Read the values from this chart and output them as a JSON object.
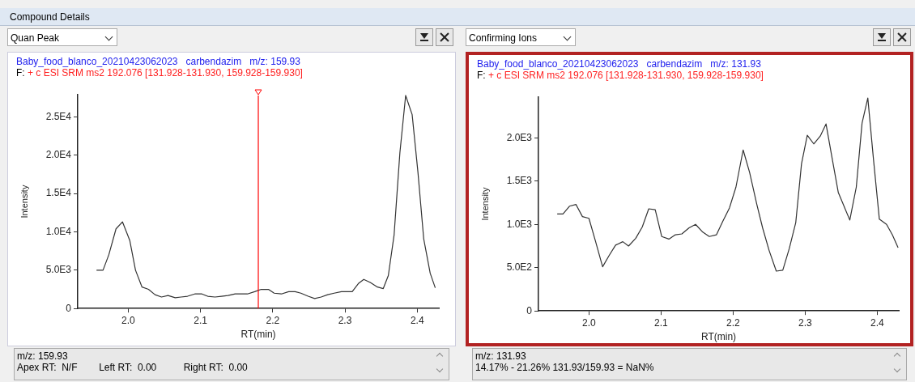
{
  "chart_data": [
    {
      "type": "line",
      "title": "Baby_food_blanco_20210423062023   carbendazim   m/z: 159.93",
      "subtitle": "F: + c ESI SRM ms2 192.076 [131.928-131.930, 159.928-159.930]",
      "xlabel": "RT(min)",
      "ylabel": "Intensity",
      "x": [
        1.956,
        1.965,
        1.973,
        1.983,
        1.992,
        2.002,
        2.01,
        2.019,
        2.028,
        2.037,
        2.046,
        2.055,
        2.065,
        2.073,
        2.082,
        2.092,
        2.102,
        2.11,
        2.12,
        2.129,
        2.138,
        2.148,
        2.157,
        2.165,
        2.175,
        2.184,
        2.194,
        2.202,
        2.212,
        2.222,
        2.231,
        2.239,
        2.249,
        2.258,
        2.267,
        2.276,
        2.285,
        2.295,
        2.305,
        2.31,
        2.319,
        2.326,
        2.335,
        2.345,
        2.353,
        2.36,
        2.368,
        2.376,
        2.384,
        2.393,
        2.401,
        2.409,
        2.418,
        2.425
      ],
      "series": [
        {
          "color": "#333333",
          "values": [
            5000,
            5000,
            7000,
            10400,
            11300,
            8900,
            5000,
            2800,
            2500,
            1800,
            1500,
            1700,
            1400,
            1500,
            1600,
            1900,
            1900,
            1600,
            1500,
            1600,
            1700,
            1900,
            1900,
            1900,
            2200,
            2500,
            2500,
            2000,
            1900,
            2200,
            2200,
            2000,
            1600,
            1300,
            1500,
            1800,
            2000,
            2200,
            2200,
            2200,
            3300,
            3800,
            3400,
            2800,
            2600,
            4300,
            9600,
            20300,
            27800,
            25300,
            17800,
            9100,
            4600,
            2700
          ]
        }
      ],
      "xlim": [
        1.93,
        2.43
      ],
      "ylim": [
        0,
        27900
      ],
      "xticks": [
        {
          "value": 2,
          "label": "2.0"
        },
        2.1,
        2.2,
        2.3,
        2.4
      ],
      "yticks": [
        0,
        {
          "value": 5000,
          "label": "5.0E3"
        },
        {
          "value": 10000,
          "label": "1.0E4"
        },
        {
          "value": 15000,
          "label": "1.5E4"
        },
        {
          "value": 20000,
          "label": "2.0E4"
        },
        {
          "value": 25000,
          "label": "2.5E4"
        }
      ],
      "ref_lines": [
        {
          "axis": "x",
          "value": 2.18,
          "color": "#ff0000"
        }
      ],
      "grid": false,
      "legend": false,
      "marker": "none",
      "line_style": "solid",
      "annotations": [
        "Compound Details",
        "Quan Peak",
        "m/z: 159.93",
        "Apex RT:  N/F        Left RT:  0.00          Right RT:  0.00"
      ]
    },
    {
      "type": "line",
      "title": "Baby_food_blanco_20210423062023   carbendazim   m/z: 131.93",
      "subtitle": "F: + c ESI SRM ms2 192.076 [131.928-131.930, 159.928-159.930]",
      "xlabel": "RT(min)",
      "ylabel": "Intensity",
      "x": [
        1.956,
        1.964,
        1.973,
        1.982,
        1.991,
        2.0,
        2.009,
        2.019,
        2.028,
        2.037,
        2.047,
        2.055,
        2.065,
        2.074,
        2.083,
        2.092,
        2.101,
        2.111,
        2.12,
        2.129,
        2.139,
        2.148,
        2.158,
        2.167,
        2.177,
        2.186,
        2.195,
        2.204,
        2.214,
        2.223,
        2.233,
        2.241,
        2.25,
        2.26,
        2.269,
        2.278,
        2.287,
        2.295,
        2.303,
        2.312,
        2.321,
        2.329,
        2.338,
        2.346,
        2.355,
        2.362,
        2.371,
        2.379,
        2.387,
        2.395,
        2.403,
        2.413,
        2.421,
        2.429
      ],
      "series": [
        {
          "color": "#333333",
          "values": [
            1120,
            1120,
            1210,
            1230,
            1090,
            1070,
            810,
            510,
            640,
            760,
            800,
            750,
            840,
            970,
            1180,
            1170,
            860,
            830,
            880,
            890,
            960,
            1000,
            910,
            860,
            880,
            1040,
            1190,
            1430,
            1860,
            1600,
            1230,
            960,
            700,
            460,
            470,
            720,
            1020,
            1700,
            2030,
            1930,
            2020,
            2160,
            1740,
            1370,
            1190,
            1050,
            1430,
            2170,
            2460,
            1740,
            1060,
            1000,
            880,
            730
          ]
        }
      ],
      "xlim": [
        1.93,
        2.43
      ],
      "ylim": [
        0,
        2470
      ],
      "xticks": [
        {
          "value": 2,
          "label": "2.0"
        },
        2.1,
        2.2,
        2.3,
        2.4
      ],
      "yticks": [
        0,
        {
          "value": 500,
          "label": "5.0E2"
        },
        {
          "value": 1000,
          "label": "1.0E3"
        },
        {
          "value": 1500,
          "label": "1.5E3"
        },
        {
          "value": 2000,
          "label": "2.0E3"
        }
      ],
      "grid": false,
      "legend": false,
      "marker": "none",
      "line_style": "solid",
      "annotations": [
        "Confirming Ions",
        "m/z: 131.93",
        "14.17% - 21.26% 131.93/159.93 = NaN%"
      ]
    }
  ]
}
